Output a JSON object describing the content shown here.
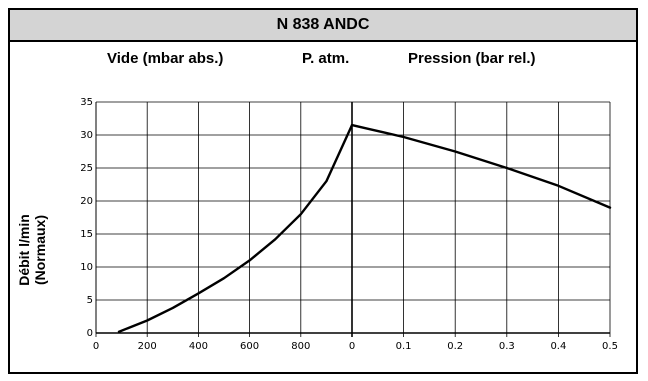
{
  "chart_data": {
    "type": "line",
    "title": "N 838 ANDC",
    "header_labels": {
      "vacuum": "Vide (mbar abs.)",
      "atm": "P. atm.",
      "pressure": "Pression (bar rel.)"
    },
    "ylabel_line1": "Débit l/min",
    "ylabel_line2": "(Normaux)",
    "ylim": [
      0,
      35
    ],
    "y_ticks": [
      "0",
      "5",
      "10",
      "15",
      "20",
      "25",
      "30",
      "35"
    ],
    "vacuum_axis": {
      "xlim": [
        0,
        1000
      ],
      "ticks": [
        "0",
        "200",
        "400",
        "600",
        "800"
      ]
    },
    "pressure_axis": {
      "xlim": [
        0,
        0.5
      ],
      "ticks": [
        "0",
        "0.1",
        "0.2",
        "0.3",
        "0.4",
        "0.5"
      ]
    },
    "grid": true,
    "series": [
      {
        "segment": "vacuum",
        "x": [
          90,
          200,
          300,
          400,
          500,
          600,
          700,
          800,
          900,
          1000
        ],
        "y": [
          0.2,
          1.9,
          3.8,
          6.0,
          8.3,
          11.0,
          14.2,
          18.0,
          23.0,
          31.5
        ]
      },
      {
        "segment": "pressure",
        "x": [
          0,
          0.1,
          0.2,
          0.3,
          0.4,
          0.5
        ],
        "y": [
          31.5,
          29.7,
          27.5,
          25.0,
          22.3,
          19.0
        ]
      }
    ]
  }
}
